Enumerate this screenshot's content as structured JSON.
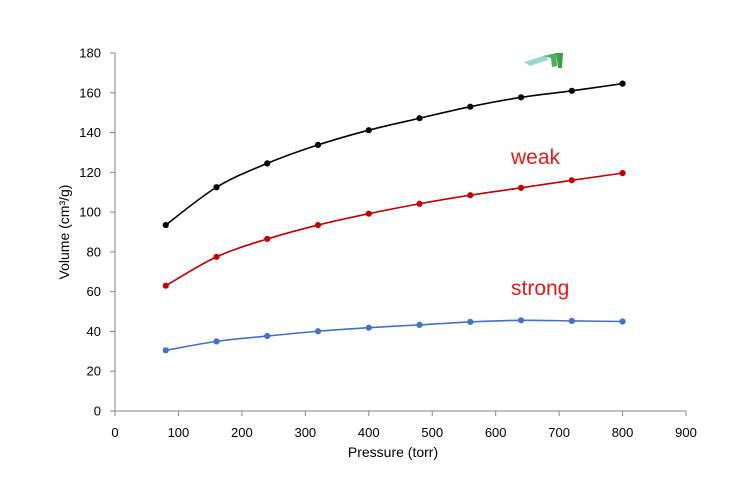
{
  "chart_data": {
    "type": "line",
    "title": "",
    "xlabel": "Pressure (torr)",
    "ylabel": "Volume (cm³/g)",
    "xlim": [
      0,
      900
    ],
    "ylim": [
      0,
      180
    ],
    "xticks": [
      0,
      100,
      200,
      300,
      400,
      500,
      600,
      700,
      800,
      900
    ],
    "yticks": [
      0,
      20,
      40,
      60,
      80,
      100,
      120,
      140,
      160,
      180
    ],
    "grid": false,
    "x": [
      80,
      160,
      240,
      320,
      400,
      480,
      560,
      640,
      720,
      800
    ],
    "series": [
      {
        "color": "#000000",
        "values": [
          93.5,
          112.5,
          124.5,
          133.8,
          141.2,
          147.2,
          153.0,
          157.7,
          161.0,
          164.6
        ]
      },
      {
        "name": "weak",
        "color": "#c00000",
        "values": [
          63.0,
          77.5,
          86.5,
          93.5,
          99.2,
          104.2,
          108.5,
          112.2,
          116.0,
          119.6
        ]
      },
      {
        "name": "strong",
        "color": "#4472c4",
        "values": [
          30.5,
          35.0,
          37.7,
          40.1,
          41.9,
          43.3,
          44.8,
          45.6,
          45.3,
          45.0
        ]
      }
    ],
    "annotations": [
      {
        "text": "weak",
        "color": "#e31a1c"
      },
      {
        "text": "strong",
        "color": "#e31a1c"
      }
    ]
  }
}
